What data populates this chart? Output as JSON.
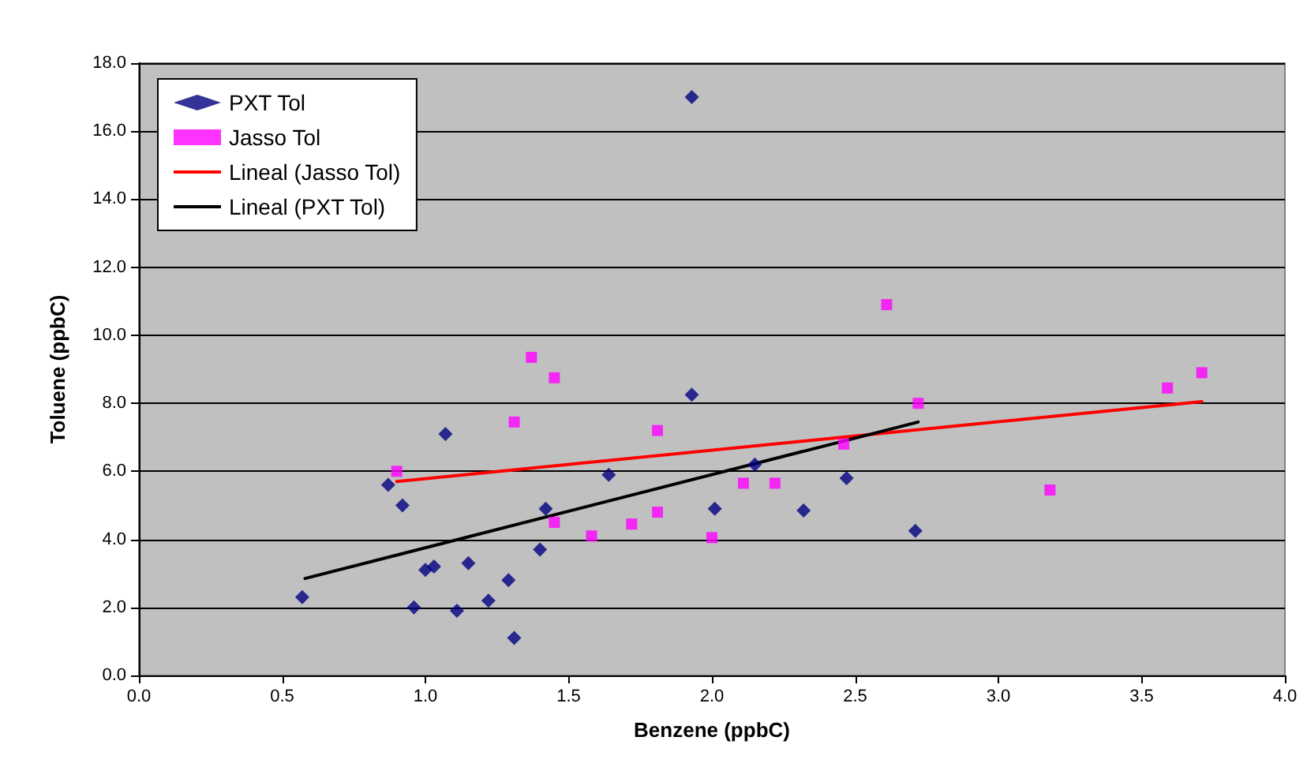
{
  "chart_data": {
    "type": "scatter",
    "xlabel": "Benzene (ppbC)",
    "ylabel": "Toluene (ppbC)",
    "xlim": [
      0,
      4
    ],
    "ylim": [
      0,
      18
    ],
    "xticks": [
      {
        "value": 0,
        "label": "0.0"
      },
      {
        "value": 0.5,
        "label": "0.5"
      },
      {
        "value": 1,
        "label": "1.0"
      },
      {
        "value": 1.5,
        "label": "1.5"
      },
      {
        "value": 2,
        "label": "2.0"
      },
      {
        "value": 2.5,
        "label": "2.5"
      },
      {
        "value": 3,
        "label": "3.0"
      },
      {
        "value": 3.5,
        "label": "3.5"
      },
      {
        "value": 4,
        "label": "4.0"
      }
    ],
    "yticks": [
      {
        "value": 0,
        "label": "0.0"
      },
      {
        "value": 2,
        "label": "2.0"
      },
      {
        "value": 4,
        "label": "4.0"
      },
      {
        "value": 6,
        "label": "6.0"
      },
      {
        "value": 8,
        "label": "8.0"
      },
      {
        "value": 10,
        "label": "10.0"
      },
      {
        "value": 12,
        "label": "12.0"
      },
      {
        "value": 14,
        "label": "14.0"
      },
      {
        "value": 16,
        "label": "16.0"
      },
      {
        "value": 18,
        "label": "18.0"
      }
    ],
    "grid": "y",
    "legend": "top left",
    "series": [
      {
        "name": "PXT Tol",
        "marker": "diamond",
        "color": "#000080",
        "x": [
          0.57,
          0.87,
          0.92,
          0.96,
          1.0,
          1.03,
          1.07,
          1.11,
          1.15,
          1.22,
          1.29,
          1.31,
          1.4,
          1.42,
          1.64,
          1.93,
          1.93,
          2.01,
          2.15,
          2.32,
          2.47,
          2.71
        ],
        "values": [
          2.3,
          5.6,
          5.0,
          2.0,
          3.1,
          3.2,
          7.1,
          1.9,
          3.3,
          2.2,
          2.8,
          1.1,
          3.7,
          4.9,
          5.9,
          17.0,
          8.25,
          4.9,
          6.2,
          4.85,
          5.8,
          4.25
        ]
      },
      {
        "name": "Jasso Tol",
        "marker": "square",
        "color": "#ff00ff",
        "x": [
          0.9,
          1.31,
          1.37,
          1.45,
          1.45,
          1.58,
          1.72,
          1.81,
          1.81,
          2.0,
          2.11,
          2.22,
          2.46,
          2.61,
          2.72,
          3.18,
          3.59,
          3.71
        ],
        "values": [
          6.0,
          7.45,
          9.35,
          8.75,
          4.5,
          4.1,
          4.45,
          7.2,
          4.8,
          4.05,
          5.65,
          5.65,
          6.8,
          10.9,
          8.0,
          5.45,
          8.45,
          8.9
        ]
      },
      {
        "name": "Lineal (Jasso Tol)",
        "type": "line",
        "marker": "none",
        "line_style": "solid",
        "color": "#ff0000",
        "x": [
          0.9,
          3.71
        ],
        "values": [
          5.7,
          8.05
        ]
      },
      {
        "name": "Lineal (PXT Tol)",
        "type": "line",
        "marker": "none",
        "line_style": "solid",
        "color": "#000000",
        "x": [
          0.58,
          2.72
        ],
        "values": [
          2.85,
          7.45
        ]
      }
    ]
  }
}
